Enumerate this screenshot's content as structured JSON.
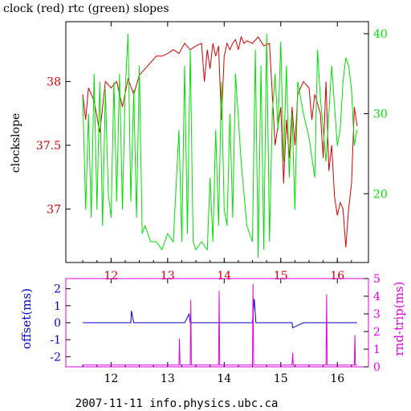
{
  "footer": "2007-11-11 info.physics.ubc.ca",
  "colors": {
    "clock": "#d40000",
    "rtc": "#00e000",
    "offset": "#0000c8",
    "roundtrip": "#e000e0",
    "axis": "#000000"
  },
  "chart_data": [
    {
      "type": "line",
      "title": "clock (red) rtc (green) slopes",
      "ylabel": "clockslope",
      "xlim": [
        11.2,
        16.55
      ],
      "ylim": [
        36.58,
        38.47
      ],
      "y2lim": [
        11.4,
        41.5
      ],
      "x_ticks": [
        "12",
        "13",
        "14",
        "15",
        "16"
      ],
      "y_ticks": [
        "37",
        "37.5",
        "38"
      ],
      "y2_ticks": [
        "20",
        "30",
        "40"
      ],
      "grid": false,
      "series": [
        {
          "name": "clock",
          "axis": "left",
          "x": [
            11.5,
            11.55,
            11.6,
            11.7,
            11.8,
            11.9,
            12.0,
            12.1,
            12.2,
            12.3,
            12.4,
            12.5,
            12.6,
            12.7,
            12.8,
            12.9,
            13.0,
            13.1,
            13.2,
            13.3,
            13.4,
            13.5,
            13.6,
            13.65,
            13.7,
            13.75,
            13.8,
            13.85,
            13.9,
            13.95,
            14.0,
            14.05,
            14.1,
            14.15,
            14.2,
            14.25,
            14.3,
            14.35,
            14.4,
            14.5,
            14.6,
            14.7,
            14.8,
            14.9,
            15.0,
            15.05,
            15.1,
            15.15,
            15.2,
            15.25,
            15.3,
            15.4,
            15.5,
            15.55,
            15.6,
            15.7,
            15.75,
            15.8,
            15.85,
            15.9,
            15.95,
            16.0,
            16.05,
            16.1,
            16.15,
            16.2,
            16.25,
            16.3,
            16.35
          ],
          "values": [
            37.9,
            37.7,
            37.95,
            37.85,
            37.6,
            38.0,
            37.95,
            38.0,
            37.8,
            38.02,
            37.9,
            38.05,
            38.1,
            38.15,
            38.2,
            38.2,
            38.22,
            38.25,
            38.22,
            38.3,
            38.25,
            38.28,
            38.3,
            38.0,
            38.25,
            38.1,
            38.3,
            38.2,
            38.28,
            37.7,
            38.2,
            38.3,
            38.25,
            38.3,
            38.33,
            38.25,
            38.35,
            38.3,
            38.32,
            38.3,
            38.35,
            38.28,
            38.3,
            37.5,
            37.8,
            37.2,
            37.7,
            37.4,
            37.8,
            37.5,
            37.9,
            38.0,
            37.95,
            37.7,
            37.9,
            37.75,
            37.4,
            38.0,
            37.3,
            37.5,
            37.1,
            36.95,
            37.05,
            37.0,
            36.7,
            37.0,
            37.2,
            37.8,
            37.65
          ]
        },
        {
          "name": "rtc",
          "axis": "right",
          "x": [
            11.5,
            11.55,
            11.6,
            11.65,
            11.7,
            11.75,
            11.8,
            11.85,
            11.9,
            11.95,
            12.0,
            12.05,
            12.1,
            12.15,
            12.2,
            12.25,
            12.3,
            12.35,
            12.4,
            12.45,
            12.5,
            12.55,
            12.6,
            12.7,
            12.8,
            12.9,
            13.0,
            13.1,
            13.2,
            13.25,
            13.3,
            13.35,
            13.4,
            13.45,
            13.5,
            13.6,
            13.7,
            13.75,
            13.8,
            13.85,
            13.9,
            13.95,
            14.0,
            14.05,
            14.1,
            14.15,
            14.2,
            14.3,
            14.4,
            14.5,
            14.55,
            14.6,
            14.65,
            14.7,
            14.75,
            14.8,
            14.85,
            14.9,
            14.95,
            15.0,
            15.05,
            15.1,
            15.15,
            15.2,
            15.25,
            15.3,
            15.4,
            15.5,
            15.6,
            15.65,
            15.7,
            15.8,
            15.9,
            16.0,
            16.05,
            16.1,
            16.15,
            16.2,
            16.25,
            16.3,
            16.35
          ],
          "values": [
            32,
            18,
            30,
            17,
            35,
            18,
            34,
            16,
            33,
            20,
            17,
            34,
            19,
            35,
            18,
            33,
            40,
            19,
            33,
            17,
            36,
            15,
            16,
            14,
            14,
            13,
            15,
            14,
            28,
            14,
            36,
            15,
            38,
            14,
            13,
            14,
            13,
            22,
            14,
            28,
            16,
            34,
            18,
            16,
            30,
            17,
            35,
            24,
            16,
            14,
            38,
            12,
            36,
            13,
            40,
            14,
            30,
            35,
            28,
            39,
            24,
            36,
            22,
            30,
            18,
            34,
            30,
            27,
            22,
            38,
            32,
            24,
            36,
            26,
            28,
            34,
            37,
            36,
            33,
            26,
            28
          ]
        }
      ]
    },
    {
      "type": "line",
      "ylabel": "offset(ms)",
      "y2label": "rnd-trip(ms)",
      "xlim": [
        11.2,
        16.55
      ],
      "ylim": [
        -2.6,
        2.6
      ],
      "y2lim": [
        0,
        5
      ],
      "x_ticks": [
        "12",
        "13",
        "14",
        "15",
        "16"
      ],
      "y_ticks": [
        "-2",
        "-1",
        "0",
        "1",
        "2"
      ],
      "y2_ticks": [
        "0",
        "1",
        "2",
        "3",
        "4",
        "5"
      ],
      "grid": false,
      "series": [
        {
          "name": "offset",
          "axis": "left",
          "x": [
            11.5,
            11.8,
            12.1,
            12.35,
            12.36,
            12.4,
            12.7,
            13.0,
            13.3,
            13.38,
            13.4,
            13.6,
            13.9,
            14.1,
            14.2,
            14.5,
            14.53,
            14.56,
            14.8,
            15.1,
            15.2,
            15.21,
            15.4,
            15.7,
            16.0,
            16.2,
            16.35
          ],
          "values": [
            0.0,
            0.0,
            0.0,
            0.0,
            0.7,
            0.0,
            0.0,
            0.0,
            0.0,
            0.5,
            0.0,
            0.0,
            0.0,
            0.0,
            0.0,
            0.0,
            1.4,
            0.0,
            0.0,
            0.0,
            0.0,
            -0.3,
            0.0,
            0.0,
            0.0,
            0.0,
            0.0
          ]
        },
        {
          "name": "rnd-trip",
          "axis": "right",
          "x": [
            11.5,
            13.2,
            13.21,
            13.22,
            13.4,
            13.41,
            13.42,
            13.9,
            13.91,
            13.92,
            14.5,
            14.51,
            14.52,
            15.2,
            15.21,
            15.22,
            15.8,
            15.81,
            15.82,
            16.3,
            16.31,
            16.32,
            16.35
          ],
          "values": [
            0.1,
            0.1,
            1.6,
            0.1,
            0.1,
            3.8,
            0.1,
            0.1,
            4.3,
            0.1,
            0.1,
            4.7,
            0.1,
            0.1,
            0.8,
            0.1,
            0.1,
            4.1,
            0.1,
            0.1,
            1.8,
            0.1,
            0.1
          ]
        }
      ]
    }
  ]
}
